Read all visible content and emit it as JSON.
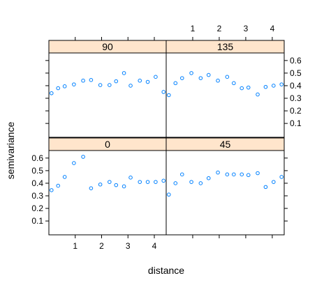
{
  "chart_data": {
    "type": "scatter",
    "layout": "2x2 lattice (trellis) panels",
    "xlabel": "distance",
    "ylabel": "semivariance",
    "x_ticks": [
      "1",
      "2",
      "3",
      "4"
    ],
    "y_ticks": [
      "0.1",
      "0.2",
      "0.3",
      "0.4",
      "0.5",
      "0.6"
    ],
    "xlim": [
      0.0,
      4.45
    ],
    "ylim": [
      -0.01,
      0.66
    ],
    "strip_color": "#ffe5cc",
    "point_color": "#0080ff",
    "marker": "open circle",
    "grid": false,
    "panels": [
      {
        "label": "90",
        "x": [
          0.1,
          0.35,
          0.6,
          0.95,
          1.3,
          1.6,
          1.95,
          2.3,
          2.55,
          2.85,
          3.1,
          3.45,
          3.75,
          4.05,
          4.35
        ],
        "y": [
          0.34,
          0.38,
          0.395,
          0.41,
          0.44,
          0.445,
          0.405,
          0.405,
          0.435,
          0.5,
          0.4,
          0.44,
          0.43,
          0.47,
          0.35
        ]
      },
      {
        "label": "135",
        "x": [
          0.1,
          0.35,
          0.6,
          0.95,
          1.3,
          1.6,
          1.95,
          2.3,
          2.55,
          2.85,
          3.1,
          3.45,
          3.75,
          4.05,
          4.35
        ],
        "y": [
          0.325,
          0.42,
          0.46,
          0.5,
          0.46,
          0.485,
          0.44,
          0.47,
          0.42,
          0.38,
          0.385,
          0.33,
          0.39,
          0.4,
          0.41
        ]
      },
      {
        "label": "0",
        "x": [
          0.1,
          0.35,
          0.6,
          0.95,
          1.3,
          1.6,
          1.95,
          2.3,
          2.55,
          2.85,
          3.1,
          3.45,
          3.75,
          4.05,
          4.35
        ],
        "y": [
          0.345,
          0.38,
          0.45,
          0.56,
          0.61,
          0.36,
          0.39,
          0.41,
          0.385,
          0.375,
          0.445,
          0.41,
          0.41,
          0.41,
          0.42
        ]
      },
      {
        "label": "45",
        "x": [
          0.1,
          0.35,
          0.6,
          0.95,
          1.3,
          1.6,
          1.95,
          2.3,
          2.55,
          2.85,
          3.1,
          3.45,
          3.75,
          4.05,
          4.35
        ],
        "y": [
          0.31,
          0.4,
          0.47,
          0.41,
          0.4,
          0.44,
          0.485,
          0.47,
          0.47,
          0.47,
          0.465,
          0.48,
          0.37,
          0.41,
          0.45
        ]
      }
    ]
  }
}
